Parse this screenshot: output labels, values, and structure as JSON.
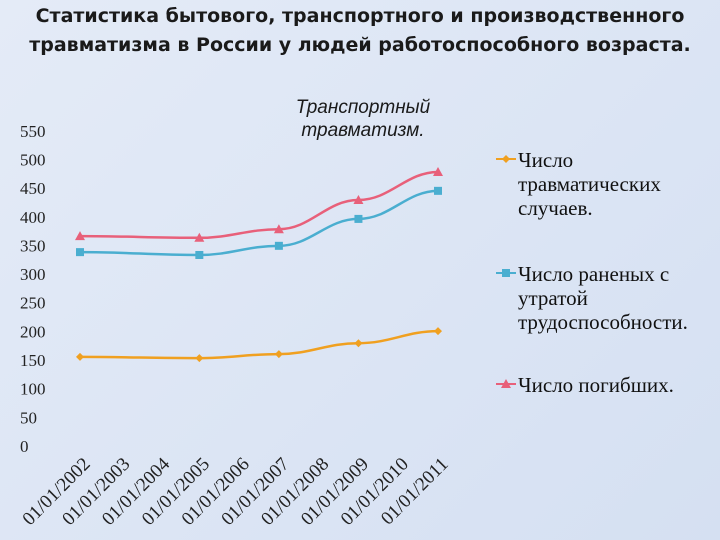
{
  "chart_data": {
    "type": "line",
    "title": "Статистика бытового, транспортного и производственного травматизма в России у людей работоспособного возраста.",
    "subtitle": "Транспортный травматизм.",
    "x": [
      "01/01/2002",
      "01/01/2005",
      "01/01/2007",
      "01/01/2009",
      "01/01/2011"
    ],
    "xticks": [
      "01/01/2002",
      "01/01/2003",
      "01/01/2004",
      "01/01/2005",
      "01/01/2006",
      "01/01/2007",
      "01/01/2008",
      "01/01/2009",
      "01/01/2010",
      "01/01/2011"
    ],
    "series": [
      {
        "name": "Число травматических случаев.",
        "color": "#f0a020",
        "marker": "diamond",
        "values": [
          159,
          157,
          164,
          183,
          204
        ]
      },
      {
        "name": "Число раненых с утратой трудоспособности.",
        "color": "#4aaed0",
        "marker": "square",
        "values": [
          342,
          337,
          353,
          400,
          449
        ]
      },
      {
        "name": "Число погибших.",
        "color": "#e8607a",
        "marker": "triangle",
        "values": [
          370,
          367,
          382,
          433,
          482
        ]
      }
    ],
    "ylim": [
      0,
      550
    ],
    "yticks": [
      0,
      50,
      100,
      150,
      200,
      250,
      300,
      350,
      400,
      450,
      500,
      550
    ]
  }
}
